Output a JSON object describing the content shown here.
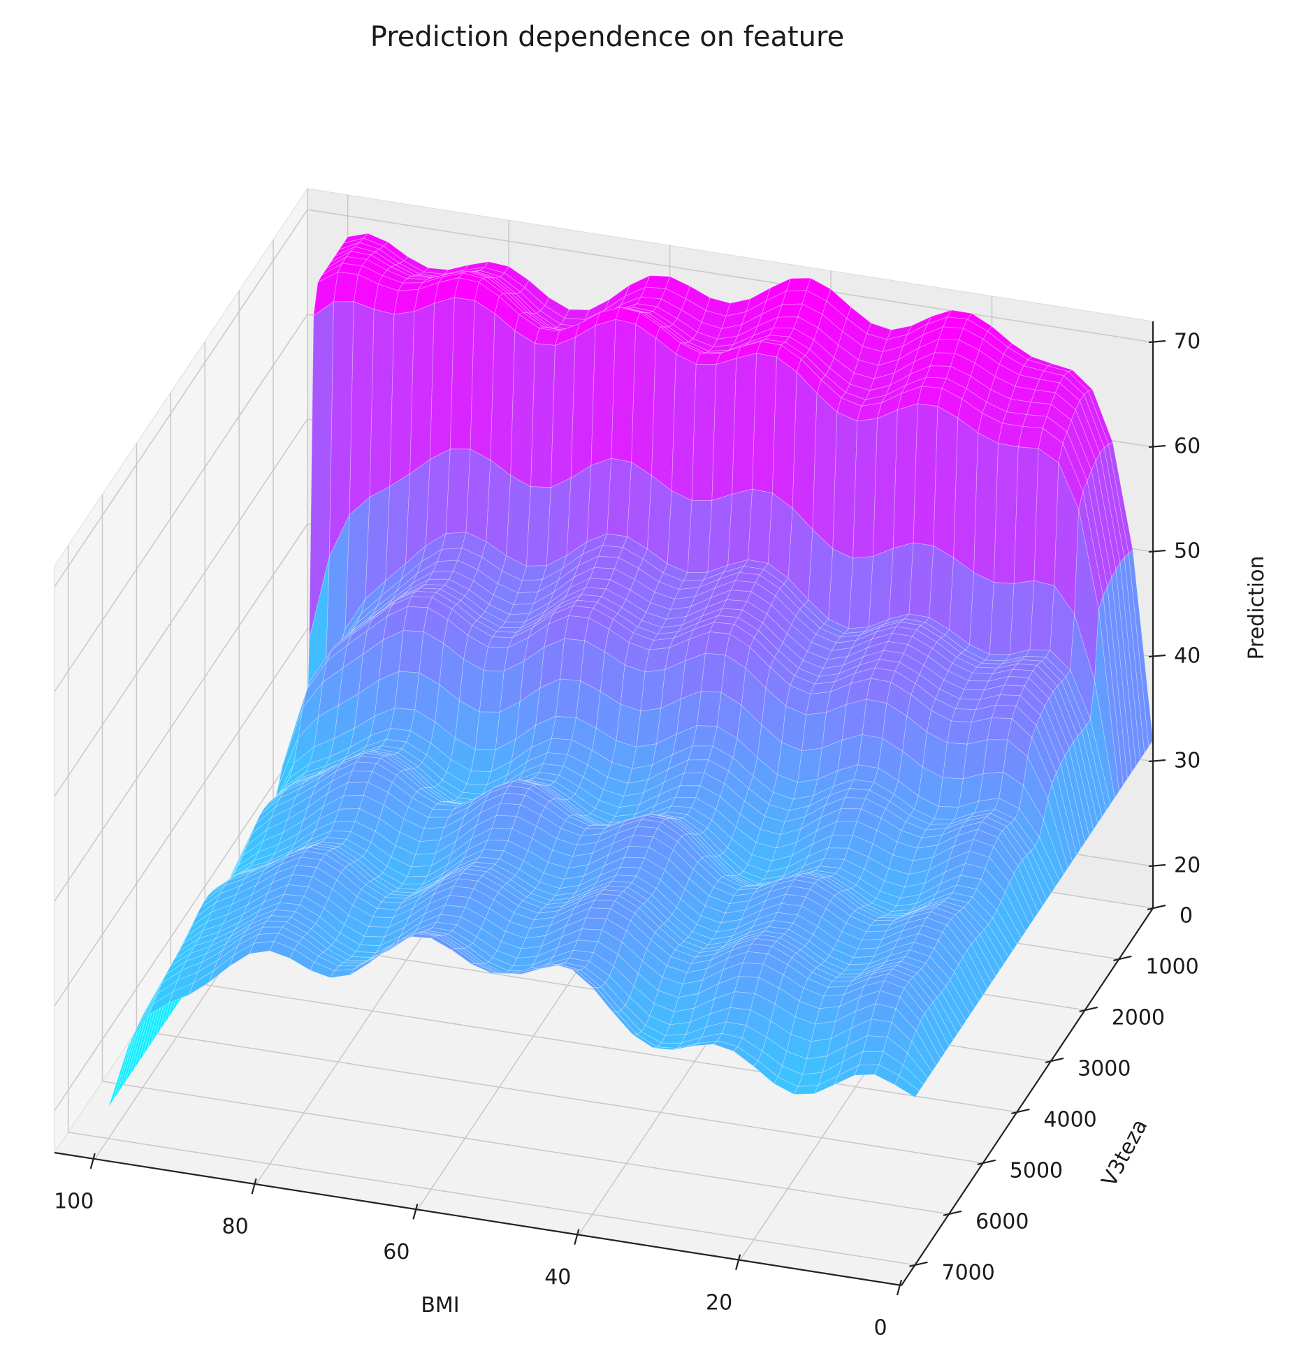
{
  "chart_data": {
    "type": "surface3d",
    "title": "Prediction dependence on feature",
    "xlabel": "BMI",
    "ylabel": "V3teza",
    "zlabel": "Prediction",
    "x_ticks": [
      0,
      20,
      40,
      60,
      80,
      100
    ],
    "y_ticks": [
      0,
      1000,
      2000,
      3000,
      4000,
      5000,
      6000,
      7000
    ],
    "z_ticks": [
      20,
      30,
      40,
      50,
      60,
      70
    ],
    "xlim": [
      0,
      105
    ],
    "ylim": [
      0,
      7400
    ],
    "zlim": [
      16,
      72
    ],
    "x_inverted": true,
    "colormap": "cool",
    "colormap_low": "#00ffff",
    "colormap_high": "#ff00ff",
    "pane_color": "#f2f2f2",
    "grid": true,
    "grid_x": [
      0,
      5,
      10,
      15,
      20,
      25,
      30,
      35,
      40,
      45,
      50,
      55,
      60,
      65,
      70,
      75,
      80,
      85,
      90,
      95,
      100
    ],
    "grid_y": [
      0,
      500,
      1000,
      1500,
      2000,
      2500,
      3000,
      3500,
      4000,
      4500,
      5000,
      5500,
      6000,
      6500,
      7000
    ],
    "surface_regions": [
      {
        "y_range": [
          0,
          1100
        ],
        "prediction_mean": 68
      },
      {
        "y_range": [
          1100,
          2600
        ],
        "prediction_mean": 47
      },
      {
        "y_range": [
          2600,
          7000
        ],
        "prediction_mean": 37
      }
    ],
    "edge_prediction_x0": 32,
    "edge_prediction_x100": 19
  }
}
